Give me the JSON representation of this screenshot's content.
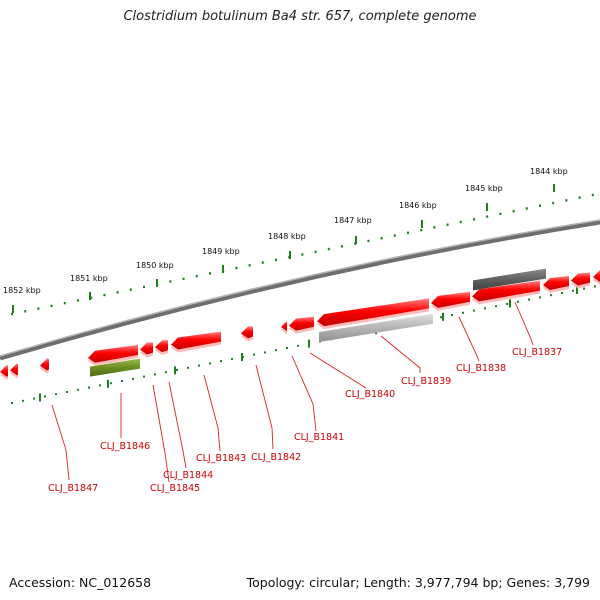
{
  "title": "Clostridium botulinum Ba4 str. 657, complete genome",
  "footer": {
    "accession": "Accession: NC_012658",
    "summary": "Topology: circular; Length: 3,977,794 bp; Genes: 3,799"
  },
  "colors": {
    "backbone": "#7f7f7f",
    "ticks": "#1f7f1f",
    "gene_forward": "#ff0000",
    "gene_rna": "#6b8e23",
    "gene_pseudo_light": "#b0b0b0",
    "gene_pseudo_dark": "#606060",
    "label": "#cc0000"
  },
  "scale": {
    "unit": "kbp",
    "labels": [
      {
        "kbp": 1852,
        "text": "1852 kbp"
      },
      {
        "kbp": 1851,
        "text": "1851 kbp"
      },
      {
        "kbp": 1850,
        "text": "1850 kbp"
      },
      {
        "kbp": 1849,
        "text": "1849 kbp"
      },
      {
        "kbp": 1848,
        "text": "1848 kbp"
      },
      {
        "kbp": 1847,
        "text": "1847 kbp"
      },
      {
        "kbp": 1846,
        "text": "1846 kbp"
      },
      {
        "kbp": 1845,
        "text": "1845 kbp"
      },
      {
        "kbp": 1844,
        "text": "1844 kbp"
      }
    ]
  },
  "genes": [
    {
      "label": "CLJ_B1847"
    },
    {
      "label": "CLJ_B1846"
    },
    {
      "label": "CLJ_B1845"
    },
    {
      "label": "CLJ_B1844"
    },
    {
      "label": "CLJ_B1843"
    },
    {
      "label": "CLJ_B1842"
    },
    {
      "label": "CLJ_B1841"
    },
    {
      "label": "CLJ_B1840"
    },
    {
      "label": "CLJ_B1839"
    },
    {
      "label": "CLJ_B1838"
    },
    {
      "label": "CLJ_B1837"
    }
  ]
}
